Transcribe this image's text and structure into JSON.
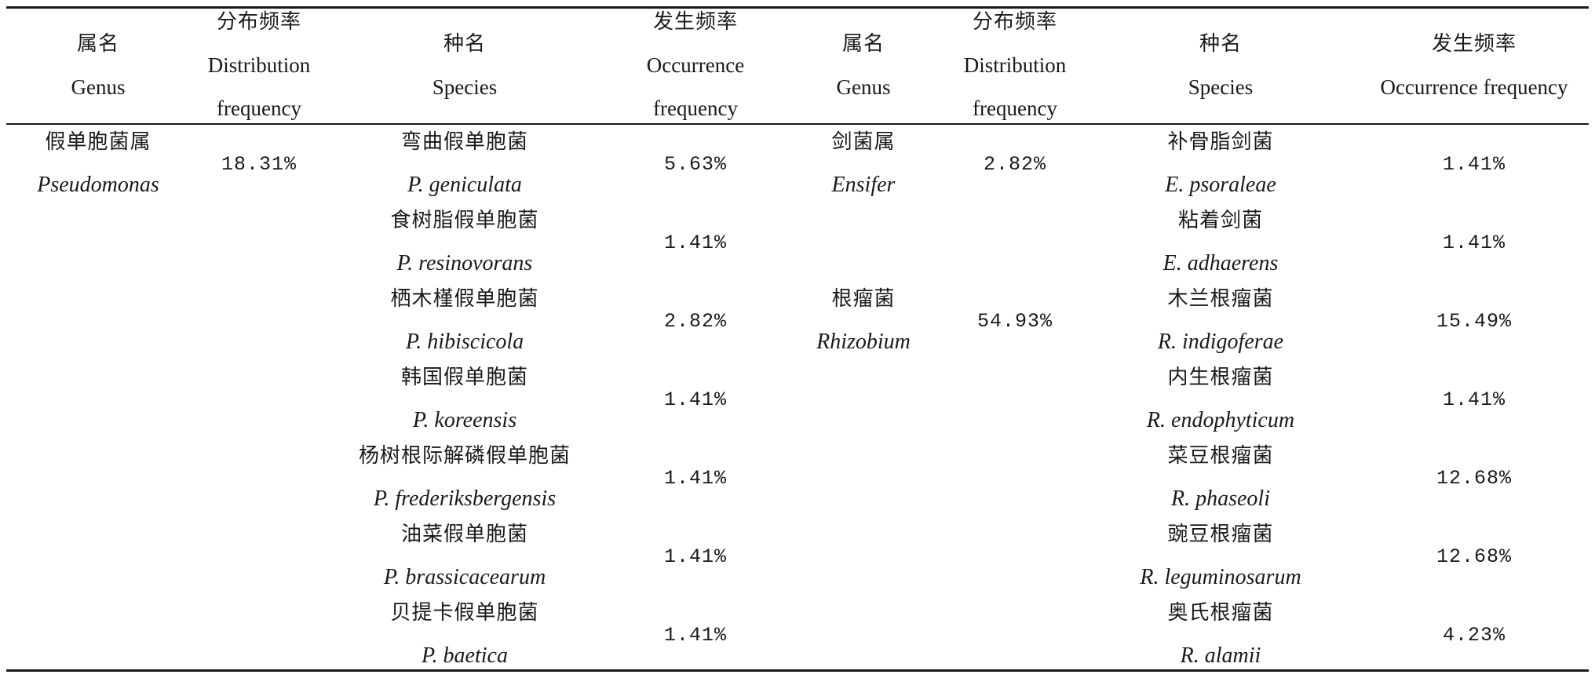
{
  "headers": {
    "genus_zh": "属名",
    "genus_en": "Genus",
    "dist_zh": "分布频率",
    "dist_en1": "Distribution",
    "dist_en2": "frequency",
    "species_zh": "种名",
    "species_en": "Species",
    "occ_zh": "发生频率",
    "occ_en1": "Occurrence",
    "occ_en2": "frequency",
    "occ_en_full": "Occurrence frequency"
  },
  "left": {
    "genus_zh": "假单胞菌属",
    "genus_la": "Pseudomonas",
    "distribution": "18.31%",
    "species": [
      {
        "zh": "弯曲假单胞菌",
        "la": "P. geniculata",
        "occurrence": "5.63%"
      },
      {
        "zh": "食树脂假单胞菌",
        "la": "P. resinovorans",
        "occurrence": "1.41%"
      },
      {
        "zh": "栖木槿假单胞菌",
        "la": "P. hibiscicola",
        "occurrence": "2.82%"
      },
      {
        "zh": "韩国假单胞菌",
        "la": "P. koreensis",
        "occurrence": "1.41%"
      },
      {
        "zh": "杨树根际解磷假单胞菌",
        "la": "P. frederiksbergensis",
        "occurrence": "1.41%"
      },
      {
        "zh": "油菜假单胞菌",
        "la": "P. brassicacearum",
        "occurrence": "1.41%"
      },
      {
        "zh": "贝提卡假单胞菌",
        "la": "P. baetica",
        "occurrence": "1.41%"
      }
    ]
  },
  "right": {
    "genera": [
      {
        "zh": "剑菌属",
        "la": "Ensifer",
        "distribution": "2.82%"
      },
      {
        "zh": "根瘤菌",
        "la": "Rhizobium",
        "distribution": "54.93%"
      }
    ],
    "species": [
      {
        "zh": "补骨脂剑菌",
        "la": "E. psoraleae",
        "occurrence": "1.41%"
      },
      {
        "zh": "粘着剑菌",
        "la": "E. adhaerens",
        "occurrence": "1.41%"
      },
      {
        "zh": "木兰根瘤菌",
        "la": "R. indigoferae",
        "occurrence": "15.49%"
      },
      {
        "zh": "内生根瘤菌",
        "la": "R. endophyticum",
        "occurrence": "1.41%"
      },
      {
        "zh": "菜豆根瘤菌",
        "la": "R. phaseoli",
        "occurrence": "12.68%"
      },
      {
        "zh": "豌豆根瘤菌",
        "la": "R. leguminosarum",
        "occurrence": "12.68%"
      },
      {
        "zh": "奥氏根瘤菌",
        "la": "R. alamii",
        "occurrence": "4.23%"
      }
    ]
  }
}
